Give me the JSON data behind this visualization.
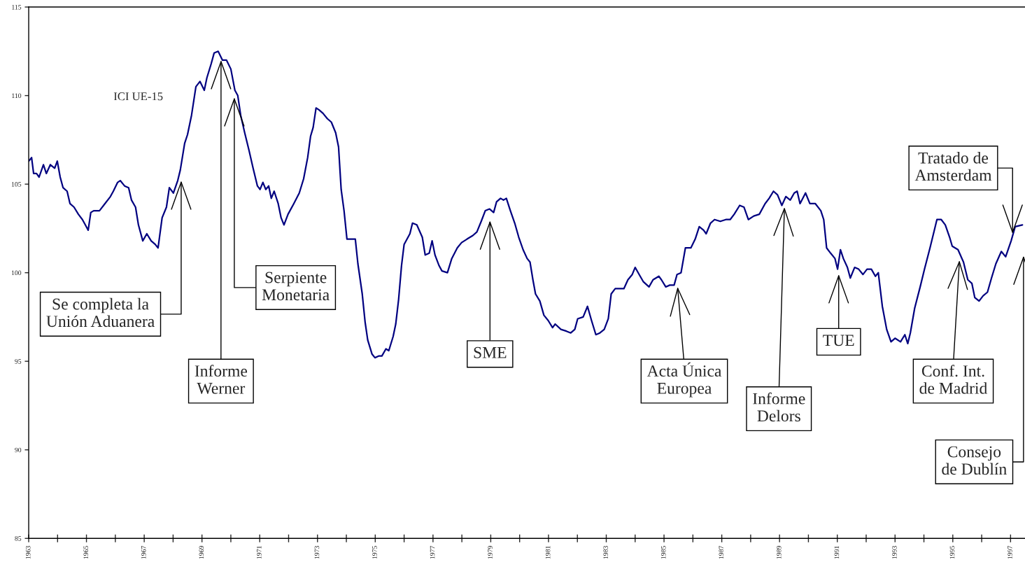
{
  "chart_data": {
    "type": "line",
    "xlim": [
      1963,
      1997.5
    ],
    "ylim": [
      85,
      115
    ],
    "xticks": [
      1963,
      {
        "value": 1964,
        "label": null
      },
      1965,
      {
        "value": 1966,
        "label": null
      },
      1967,
      {
        "value": 1968,
        "label": null
      },
      1969,
      {
        "value": 1970,
        "label": null
      },
      1971,
      {
        "value": 1972,
        "label": null
      },
      1973,
      {
        "value": 1974,
        "label": null
      },
      1975,
      {
        "value": 1976,
        "label": null
      },
      1977,
      {
        "value": 1978,
        "label": null
      },
      1979,
      {
        "value": 1980,
        "label": null
      },
      1981,
      {
        "value": 1982,
        "label": null
      },
      1983,
      {
        "value": 1984,
        "label": null
      },
      1985,
      {
        "value": 1986,
        "label": null
      },
      1987,
      {
        "value": 1988,
        "label": null
      },
      1989,
      {
        "value": 1990,
        "label": null
      },
      1991,
      {
        "value": 1992,
        "label": null
      },
      1993,
      {
        "value": 1994,
        "label": null
      },
      1995,
      {
        "value": 1996,
        "label": null
      },
      1997
    ],
    "yticks": [
      85,
      90,
      95,
      100,
      105,
      110,
      115
    ],
    "grid": false,
    "series": [
      {
        "name": "ICI UE-15",
        "color": "#000080",
        "x": [
          1963.0,
          1963.1,
          1963.17,
          1963.27,
          1963.36,
          1963.51,
          1963.61,
          1963.75,
          1963.9,
          1963.99,
          1964.09,
          1964.19,
          1964.33,
          1964.43,
          1964.57,
          1964.72,
          1964.86,
          1964.96,
          1965.06,
          1965.15,
          1965.25,
          1965.45,
          1965.64,
          1965.83,
          1965.93,
          1966.08,
          1966.17,
          1966.32,
          1966.46,
          1966.56,
          1966.7,
          1966.8,
          1966.95,
          1967.09,
          1967.24,
          1967.38,
          1967.48,
          1967.62,
          1967.77,
          1967.87,
          1968.01,
          1968.16,
          1968.25,
          1968.4,
          1968.5,
          1968.64,
          1968.79,
          1968.93,
          1969.08,
          1969.17,
          1969.32,
          1969.42,
          1969.56,
          1969.71,
          1969.85,
          1970.0,
          1970.14,
          1970.24,
          1970.34,
          1970.48,
          1970.63,
          1970.77,
          1970.92,
          1971.01,
          1971.11,
          1971.21,
          1971.31,
          1971.4,
          1971.5,
          1971.64,
          1971.74,
          1971.84,
          1971.98,
          1972.18,
          1972.37,
          1972.52,
          1972.66,
          1972.76,
          1972.85,
          1972.95,
          1973.05,
          1973.19,
          1973.34,
          1973.48,
          1973.63,
          1973.73,
          1973.82,
          1973.92,
          1974.02,
          1974.16,
          1974.31,
          1974.4,
          1974.55,
          1974.65,
          1974.74,
          1974.89,
          1974.99,
          1975.13,
          1975.23,
          1975.37,
          1975.47,
          1975.62,
          1975.71,
          1975.81,
          1975.91,
          1976.0,
          1976.2,
          1976.29,
          1976.44,
          1976.63,
          1976.73,
          1976.87,
          1976.97,
          1977.07,
          1977.21,
          1977.31,
          1977.5,
          1977.65,
          1977.84,
          1977.99,
          1978.18,
          1978.38,
          1978.52,
          1978.67,
          1978.81,
          1978.96,
          1979.1,
          1979.2,
          1979.34,
          1979.44,
          1979.54,
          1979.68,
          1979.83,
          1979.97,
          1980.12,
          1980.26,
          1980.36,
          1980.46,
          1980.55,
          1980.7,
          1980.84,
          1980.99,
          1981.14,
          1981.23,
          1981.43,
          1981.62,
          1981.77,
          1981.91,
          1982.01,
          1982.2,
          1982.35,
          1982.49,
          1982.64,
          1982.78,
          1982.93,
          1983.07,
          1983.17,
          1983.31,
          1983.46,
          1983.61,
          1983.75,
          1983.9,
          1984.0,
          1984.14,
          1984.28,
          1984.48,
          1984.62,
          1984.82,
          1984.91,
          1985.06,
          1985.2,
          1985.35,
          1985.45,
          1985.59,
          1985.74,
          1985.93,
          1986.08,
          1986.22,
          1986.37,
          1986.46,
          1986.61,
          1986.75,
          1986.95,
          1987.14,
          1987.29,
          1987.43,
          1987.62,
          1987.77,
          1987.92,
          1988.11,
          1988.3,
          1988.5,
          1988.64,
          1988.79,
          1988.93,
          1989.08,
          1989.22,
          1989.37,
          1989.51,
          1989.61,
          1989.71,
          1989.9,
          1990.05,
          1990.24,
          1990.43,
          1990.53,
          1990.63,
          1990.77,
          1990.92,
          1991.01,
          1991.11,
          1991.21,
          1991.35,
          1991.45,
          1991.6,
          1991.74,
          1991.89,
          1992.03,
          1992.18,
          1992.32,
          1992.42,
          1992.56,
          1992.71,
          1992.86,
          1993.0,
          1993.19,
          1993.34,
          1993.44,
          1993.53,
          1993.68,
          1993.87,
          1994.02,
          1994.21,
          1994.36,
          1994.45,
          1994.6,
          1994.74,
          1994.89,
          1994.98,
          1995.18,
          1995.37,
          1995.52,
          1995.66,
          1995.76,
          1995.91,
          1996.05,
          1996.2,
          1996.34,
          1996.49,
          1996.68,
          1996.83,
          1997.02,
          1997.16,
          1997.41
        ],
        "values": [
          106.3,
          106.5,
          105.6,
          105.6,
          105.4,
          106.1,
          105.6,
          106.1,
          105.9,
          106.3,
          105.4,
          104.8,
          104.6,
          103.9,
          103.7,
          103.3,
          103.0,
          102.7,
          102.4,
          103.4,
          103.5,
          103.5,
          103.9,
          104.3,
          104.6,
          105.1,
          105.2,
          104.9,
          104.8,
          104.1,
          103.7,
          102.7,
          101.8,
          102.2,
          101.8,
          101.6,
          101.4,
          103.1,
          103.7,
          104.8,
          104.5,
          105.2,
          105.8,
          107.3,
          107.8,
          108.9,
          110.5,
          110.8,
          110.3,
          111.0,
          111.8,
          112.4,
          112.5,
          112.0,
          112.0,
          111.5,
          110.3,
          110.0,
          108.9,
          107.9,
          106.9,
          105.9,
          104.9,
          104.7,
          105.1,
          104.7,
          104.9,
          104.2,
          104.6,
          103.9,
          103.1,
          102.7,
          103.3,
          103.9,
          104.5,
          105.3,
          106.5,
          107.7,
          108.2,
          109.3,
          109.2,
          109.0,
          108.7,
          108.5,
          107.9,
          107.1,
          104.7,
          103.5,
          101.9,
          101.9,
          101.9,
          100.5,
          98.8,
          97.2,
          96.2,
          95.4,
          95.2,
          95.3,
          95.3,
          95.7,
          95.6,
          96.4,
          97.1,
          98.5,
          100.4,
          101.6,
          102.2,
          102.8,
          102.7,
          102.0,
          101.0,
          101.1,
          101.8,
          101.0,
          100.4,
          100.1,
          100.0,
          100.8,
          101.4,
          101.7,
          101.9,
          102.1,
          102.3,
          102.9,
          103.5,
          103.6,
          103.4,
          104.0,
          104.2,
          104.1,
          104.2,
          103.5,
          102.8,
          102.0,
          101.3,
          100.8,
          100.6,
          99.6,
          98.8,
          98.4,
          97.6,
          97.3,
          96.9,
          97.1,
          96.8,
          96.7,
          96.6,
          96.8,
          97.4,
          97.5,
          98.1,
          97.3,
          96.5,
          96.6,
          96.8,
          97.4,
          98.8,
          99.1,
          99.1,
          99.1,
          99.6,
          99.9,
          100.3,
          99.9,
          99.5,
          99.2,
          99.6,
          99.8,
          99.6,
          99.2,
          99.3,
          99.3,
          99.9,
          100.0,
          101.4,
          101.4,
          101.9,
          102.6,
          102.4,
          102.2,
          102.8,
          103.0,
          102.9,
          103.0,
          103.0,
          103.3,
          103.8,
          103.7,
          103.0,
          103.2,
          103.3,
          103.9,
          104.2,
          104.6,
          104.4,
          103.8,
          104.3,
          104.1,
          104.5,
          104.6,
          103.9,
          104.5,
          103.9,
          103.9,
          103.5,
          103.0,
          101.4,
          101.1,
          100.8,
          100.2,
          101.3,
          100.8,
          100.3,
          99.7,
          100.3,
          100.2,
          99.9,
          100.2,
          100.2,
          99.8,
          100.0,
          98.1,
          96.8,
          96.1,
          96.3,
          96.1,
          96.5,
          96.0,
          96.6,
          98.0,
          99.2,
          100.2,
          101.4,
          102.4,
          103.0,
          103.0,
          102.7,
          102.0,
          101.5,
          101.3,
          100.6,
          99.6,
          99.4,
          98.6,
          98.4,
          98.7,
          98.9,
          99.7,
          100.5,
          101.2,
          100.9,
          101.8,
          102.6,
          102.7
        ]
      }
    ],
    "annotations": [
      {
        "text": "Se completa la\nUnión Aduanera",
        "x": 1968.28,
        "y": 105.2
      },
      {
        "text": "Informe\nWerner",
        "x": 1969.66,
        "y": 112.0
      },
      {
        "text": "Serpiente\nMonetaria",
        "x": 1970.12,
        "y": 109.9
      },
      "SME",
      {
        "text": "Acta Única\nEuropea",
        "x": 1985.47,
        "y": 99.2
      },
      {
        "text": "Informe\nDelors",
        "x": 1989.17,
        "y": 103.7
      },
      "TUE",
      {
        "text": "Conf. Int.\nde Madrid",
        "x": 1995.23,
        "y": 100.7
      },
      {
        "text": "Tratado de\nAmsterdam",
        "x": 1997.07,
        "y": 102.2
      },
      "Consejo\nde Dublín"
    ]
  }
}
